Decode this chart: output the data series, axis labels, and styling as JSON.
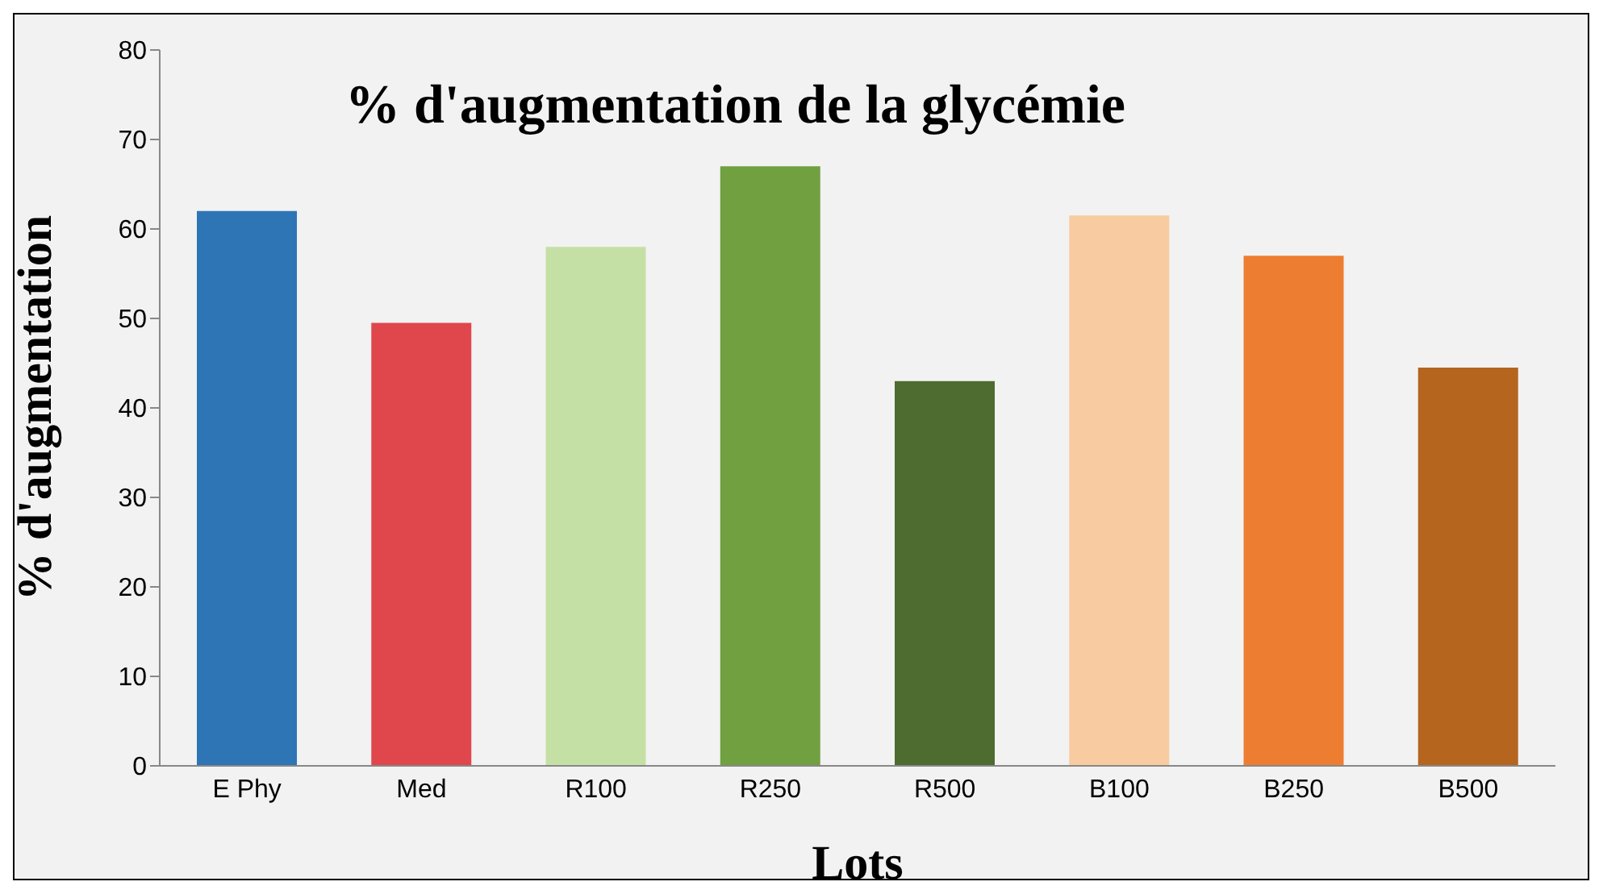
{
  "chart_data": {
    "type": "bar",
    "title": "% d'augmentation de la glycémie",
    "xlabel": "Lots",
    "ylabel": "% d'augmentation",
    "categories": [
      "E Phy",
      "Med",
      "R100",
      "R250",
      "R500",
      "B100",
      "B250",
      "B500"
    ],
    "values": [
      62,
      49.5,
      58,
      67,
      43,
      61.5,
      57,
      44.5
    ],
    "colors": [
      "#2e75b6",
      "#e0474c",
      "#c5e0a5",
      "#70a040",
      "#4e6b30",
      "#f8cba0",
      "#ed7d31",
      "#b5651d"
    ],
    "ylim": [
      0,
      80
    ],
    "yticks": [
      0,
      10,
      20,
      30,
      40,
      50,
      60,
      70,
      80
    ],
    "grid": false
  }
}
